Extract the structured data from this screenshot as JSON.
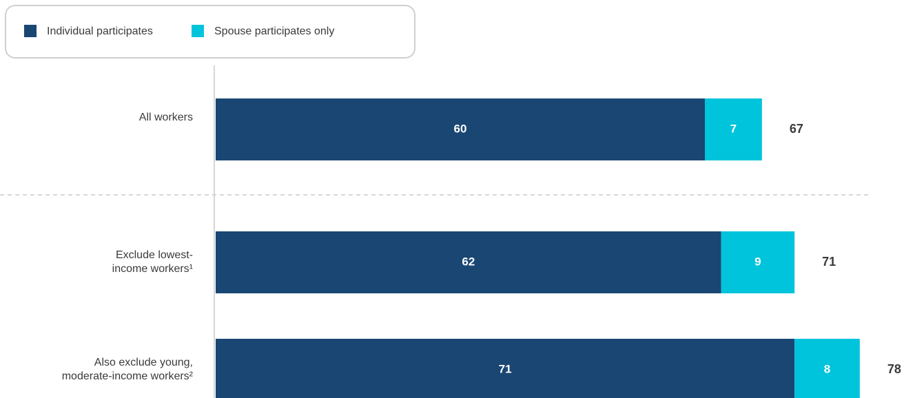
{
  "chart_data": {
    "type": "stacked-bar-horizontal",
    "categories": [
      [
        "All workers"
      ],
      [
        "Exclude lowest-",
        "income workers¹"
      ],
      [
        "Also exclude young,",
        "moderate-income workers²"
      ]
    ],
    "series": [
      {
        "name": "Individual participates",
        "color": "#1a4674",
        "values": [
          60,
          62,
          71
        ]
      },
      {
        "name": "Spouse participates only",
        "color": "#00c4dc",
        "values": [
          7,
          9,
          8
        ]
      }
    ],
    "totals": [
      67,
      71,
      78
    ],
    "xlim": [
      0,
      84
    ]
  }
}
